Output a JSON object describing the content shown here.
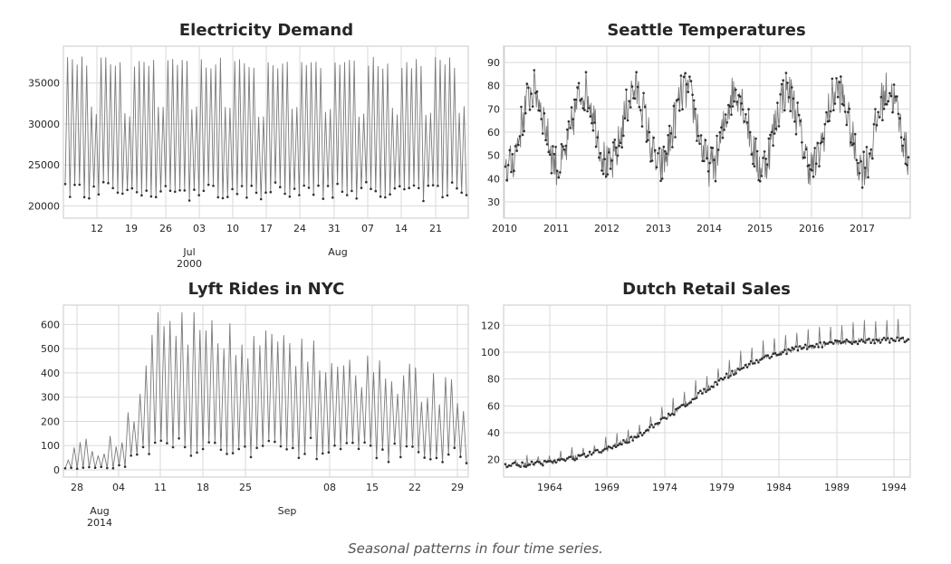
{
  "caption": "Seasonal patterns in four time series.",
  "colors": {
    "line": "#7a7a7a",
    "marker": "#303030",
    "grid": "#d9d9d9",
    "frame": "#c8c8c8"
  },
  "chart_data": [
    {
      "type": "line",
      "title": "Electricity Demand",
      "xlabel": "",
      "ylabel": "",
      "x_ticks": [
        "12",
        "19",
        "26",
        "03",
        "10",
        "17",
        "24",
        "31",
        "07",
        "14",
        "21"
      ],
      "x_minor_labels": [
        "Jul\n2000",
        "Aug"
      ],
      "y_ticks": [
        20000,
        25000,
        30000,
        35000
      ],
      "ylim": [
        18500,
        39500
      ],
      "grid": true,
      "series": [
        {
          "period_days": 7,
          "daily_low": 22000,
          "daily_high": 37500,
          "weekend_dip": 6000,
          "x_range": [
            "2000-06-05",
            "2000-08-28"
          ]
        }
      ]
    },
    {
      "type": "line",
      "title": "Seattle Temperatures",
      "xlabel": "",
      "ylabel": "",
      "x_ticks": [
        "2010",
        "2011",
        "2012",
        "2013",
        "2014",
        "2015",
        "2016",
        "2017"
      ],
      "y_ticks": [
        30,
        40,
        50,
        60,
        70,
        80,
        90
      ],
      "ylim": [
        23,
        97
      ],
      "grid": true,
      "series": [
        {
          "period_years": 1,
          "winter_low": 45,
          "summer_high": 78,
          "x_range": [
            2010.0,
            2017.95
          ]
        }
      ]
    },
    {
      "type": "line",
      "title": "Lyft Rides in NYC",
      "xlabel": "",
      "ylabel": "",
      "x_ticks": [
        "28",
        "04",
        "11",
        "18",
        "25",
        "08",
        "15",
        "22",
        "29"
      ],
      "x_minor_labels": [
        "Aug\n2014",
        "Sep"
      ],
      "y_ticks": [
        0,
        100,
        200,
        300,
        400,
        500,
        600
      ],
      "ylim": [
        -30,
        680
      ],
      "grid": true,
      "series": [
        {
          "period_hours": 24,
          "peak_max": 650,
          "x_range": [
            "2014-07-25",
            "2014-09-30"
          ]
        }
      ]
    },
    {
      "type": "line",
      "title": "Dutch Retail Sales",
      "xlabel": "",
      "ylabel": "",
      "x_ticks": [
        "1964",
        "1969",
        "1974",
        "1979",
        "1984",
        "1989",
        "1994"
      ],
      "y_ticks": [
        20,
        40,
        60,
        80,
        100,
        120
      ],
      "ylim": [
        7,
        135
      ],
      "grid": true,
      "series": [
        {
          "start": 1960.0,
          "end": 1995.8,
          "value_start": 14,
          "value_end": 110,
          "december_spike": 12
        }
      ]
    }
  ]
}
